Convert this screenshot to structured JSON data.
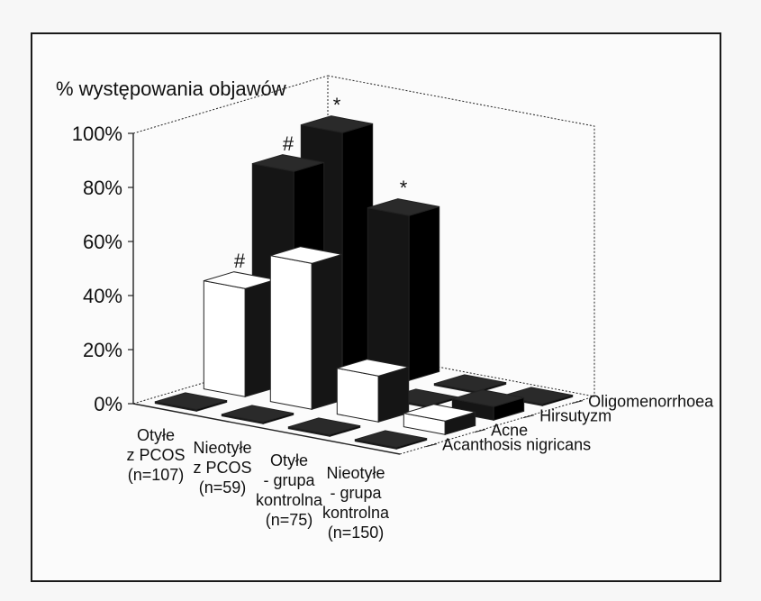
{
  "chart_data": {
    "type": "bar",
    "subtype": "3d-grouped",
    "title": "% występowania objawów",
    "yticks": [
      "0%",
      "20%",
      "40%",
      "60%",
      "80%",
      "100%"
    ],
    "ylim": [
      0,
      100
    ],
    "grid": false,
    "legend_position": "right",
    "groups": [
      {
        "lines": [
          "Otyłe",
          "z PCOS",
          "(n=107)"
        ]
      },
      {
        "lines": [
          "Nieotyłe",
          "z PCOS",
          "(n=59)"
        ]
      },
      {
        "lines": [
          "Otyłe",
          "- grupa",
          "kontrolna",
          "(n=75)"
        ]
      },
      {
        "lines": [
          "Nieotyłe",
          "- grupa",
          "kontrolna",
          "(n=150)"
        ]
      }
    ],
    "series": [
      {
        "name": "Oligomenorrhoea",
        "fill": "black",
        "values": [
          87,
          61,
          0,
          0
        ],
        "markers": [
          "*",
          "*",
          "",
          ""
        ]
      },
      {
        "name": "Hirsutyzm",
        "fill": "black",
        "values": [
          78,
          0,
          0,
          5
        ],
        "markers": [
          "#",
          "",
          "",
          ""
        ]
      },
      {
        "name": "Acne",
        "fill": "white",
        "values": [
          40,
          54,
          17,
          5
        ],
        "markers": [
          "#",
          "",
          "",
          ""
        ]
      },
      {
        "name": "Acanthosis nigricans",
        "fill": "black",
        "values": [
          0,
          0,
          0,
          0
        ],
        "markers": [
          "",
          "",
          "",
          ""
        ]
      }
    ],
    "colors": {
      "dark": "#151515",
      "light": "#ffffff",
      "axis": "#222222"
    }
  }
}
